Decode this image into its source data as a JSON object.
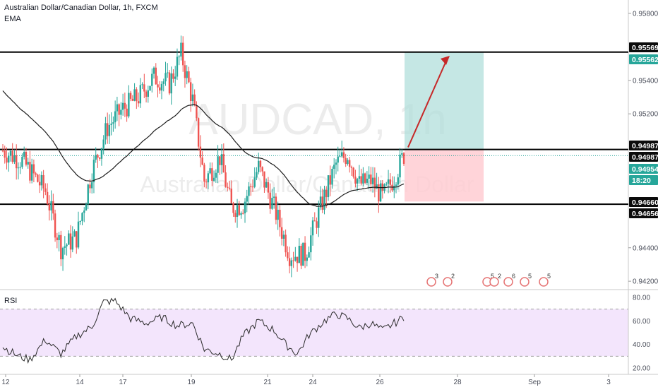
{
  "header": {
    "symbol_line": "Australian Dollar/Canadian Dollar, 1h, FXCM",
    "indicator": "EMA",
    "rsi_label": "RSI"
  },
  "watermark": {
    "big": "AUDCAD, 1h",
    "small": "Australian Dollar/Canadian Dollar"
  },
  "colors": {
    "up": "#26a69a",
    "down": "#ef5350",
    "ema": "#1c1c1c",
    "target_zone": "#b2dfdb",
    "stop_zone": "#ffcdd2",
    "rsi_line": "#2a2a2a",
    "rsi_band": "#f3e5fc",
    "arrow": "#c62828"
  },
  "chart_data": [
    {
      "type": "candlestick",
      "title": "Australian Dollar/Canadian Dollar, 1h, FXCM",
      "y_ticks": [
        "0.95800",
        "0.95400",
        "0.95200",
        "0.94400",
        "0.94200"
      ],
      "ylim": [
        0.9415,
        0.9588
      ],
      "x_ticks": [
        "12",
        "14",
        "17",
        "19",
        "21",
        "24",
        "26",
        "28",
        "Sep",
        "3"
      ],
      "anchors": {
        "open": 0.9498,
        "start_low": 0.9487,
        "high_a": 0.9555,
        "high_b": 0.95595,
        "low_a": 0.944,
        "low_b": 0.943,
        "last": 0.94954
      },
      "horizontal_levels": [
        0.95569,
        0.94987,
        0.9466
      ],
      "price_labels": [
        {
          "text": "0.95569",
          "style": "black"
        },
        {
          "text": "0.95562",
          "style": "green"
        },
        {
          "text": "0.94987",
          "style": "black"
        },
        {
          "text": "0.94987",
          "style": "black"
        },
        {
          "text": "0.94954",
          "style": "green"
        },
        {
          "text": "18:20",
          "style": "green-sub"
        },
        {
          "text": "0.94660",
          "style": "black"
        },
        {
          "text": "0.94656",
          "style": "black"
        }
      ],
      "position": {
        "entry": 0.94987,
        "target": 0.95569,
        "stop": 0.9466
      },
      "event_markers": [
        "3",
        "2",
        "5",
        "2",
        "6",
        "5",
        "5"
      ]
    },
    {
      "type": "line",
      "title": "RSI",
      "y_ticks": [
        "80.00",
        "60.00",
        "40.00",
        "20.00"
      ],
      "ylim": [
        20,
        80
      ],
      "bands": [
        70,
        30
      ],
      "anchors": {
        "start": 38,
        "low": 27,
        "high": 77,
        "end": 63
      }
    }
  ]
}
